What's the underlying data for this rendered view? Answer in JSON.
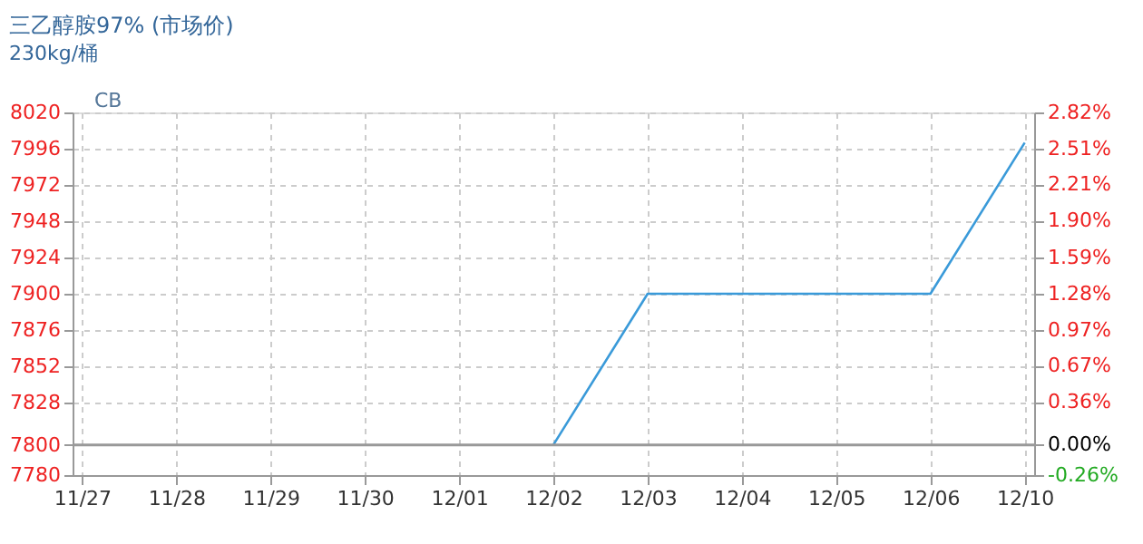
{
  "chart_data": {
    "type": "line",
    "title": "三乙醇胺97% (市场价)",
    "subtitle": "230kg/桶",
    "annotations": [
      "CB"
    ],
    "categories": [
      "11/27",
      "11/28",
      "11/29",
      "11/30",
      "12/01",
      "12/02",
      "12/03",
      "12/04",
      "12/05",
      "12/06",
      "12/10"
    ],
    "series": [
      {
        "color": "#3a9ad9",
        "values": [
          null,
          null,
          null,
          null,
          null,
          7800,
          7900,
          7900,
          7900,
          7900,
          8000
        ]
      }
    ],
    "ylim": [
      7780,
      8020
    ],
    "yticks": [
      7780,
      7800,
      7828,
      7852,
      7876,
      7900,
      7924,
      7948,
      7972,
      7996,
      8020
    ],
    "y2lim": [
      -0.26,
      2.82
    ],
    "y2ticks": [
      {
        "value": -0.26,
        "label": "-0.26%"
      },
      {
        "value": 0,
        "label": "0.00%"
      },
      {
        "value": 0.36,
        "label": "0.36%"
      },
      {
        "value": 0.67,
        "label": "0.67%"
      },
      {
        "value": 0.97,
        "label": "0.97%"
      },
      {
        "value": 1.28,
        "label": "1.28%"
      },
      {
        "value": 1.59,
        "label": "1.59%"
      },
      {
        "value": 1.9,
        "label": "1.90%"
      },
      {
        "value": 2.21,
        "label": "2.21%"
      },
      {
        "value": 2.51,
        "label": "2.51%"
      },
      {
        "value": 2.82,
        "label": "2.82%"
      }
    ],
    "ref_lines": [
      {
        "axis": "y",
        "value": 7800,
        "color": "#999999"
      }
    ],
    "grid": true,
    "marker": "none",
    "line_style": "solid"
  }
}
